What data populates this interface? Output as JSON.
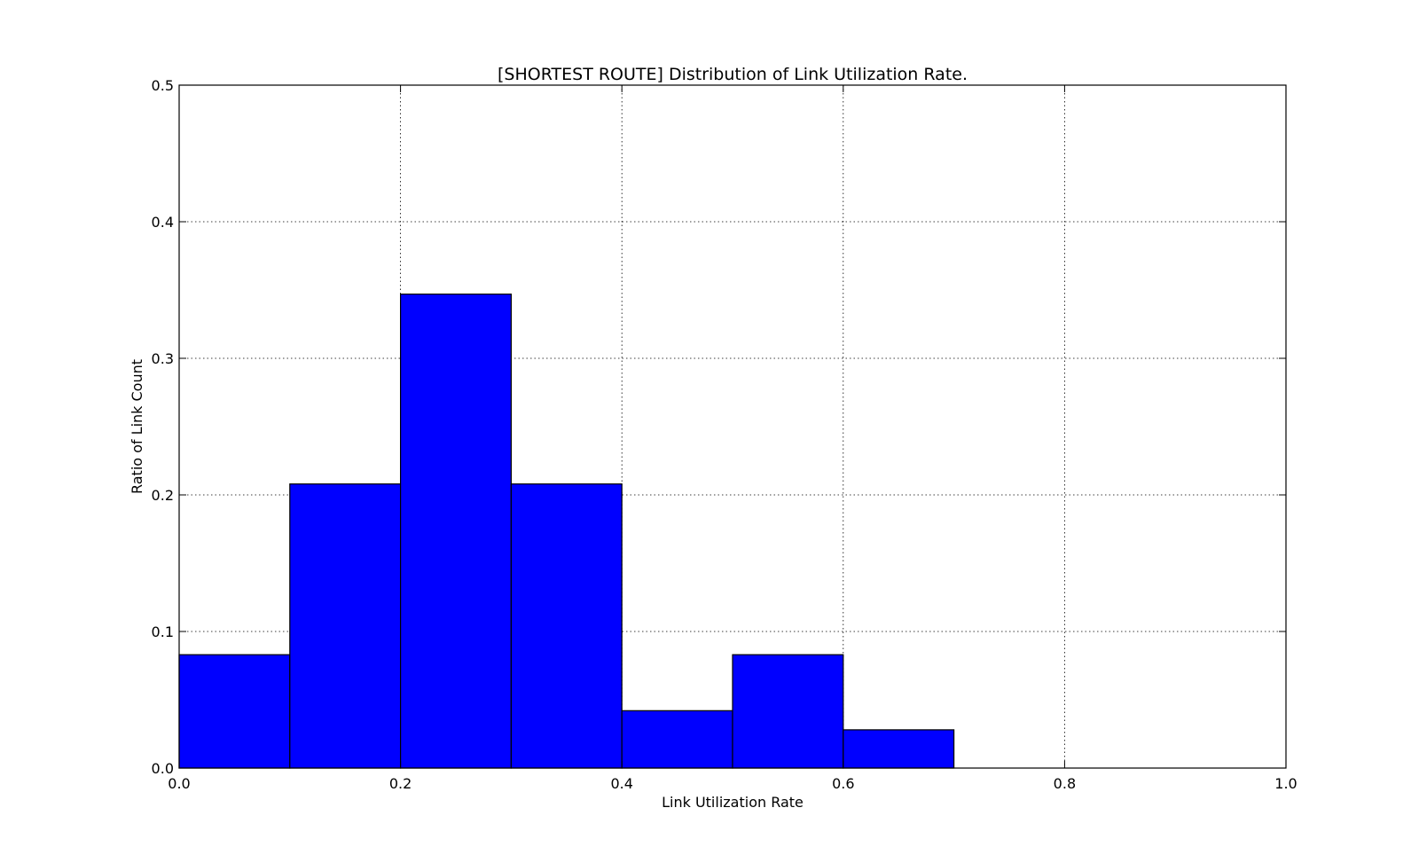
{
  "chart_data": {
    "type": "bar",
    "title": "[SHORTEST ROUTE] Distribution of Link Utilization Rate.",
    "xlabel": "Link Utilization Rate",
    "ylabel": "Ratio of Link Count",
    "xlim": [
      0.0,
      1.0
    ],
    "ylim": [
      0.0,
      0.5
    ],
    "xticks": [
      "0.0",
      "0.2",
      "0.4",
      "0.6",
      "0.8",
      "1.0"
    ],
    "yticks": [
      "0.0",
      "0.1",
      "0.2",
      "0.3",
      "0.4",
      "0.5"
    ],
    "bins": [
      {
        "start": 0.0,
        "end": 0.1,
        "value": 0.083
      },
      {
        "start": 0.1,
        "end": 0.2,
        "value": 0.208
      },
      {
        "start": 0.2,
        "end": 0.3,
        "value": 0.347
      },
      {
        "start": 0.3,
        "end": 0.4,
        "value": 0.208
      },
      {
        "start": 0.4,
        "end": 0.5,
        "value": 0.042
      },
      {
        "start": 0.5,
        "end": 0.6,
        "value": 0.083
      },
      {
        "start": 0.6,
        "end": 0.7,
        "value": 0.028
      }
    ],
    "bar_color": "#0000ff",
    "grid": true,
    "legend": "none"
  }
}
